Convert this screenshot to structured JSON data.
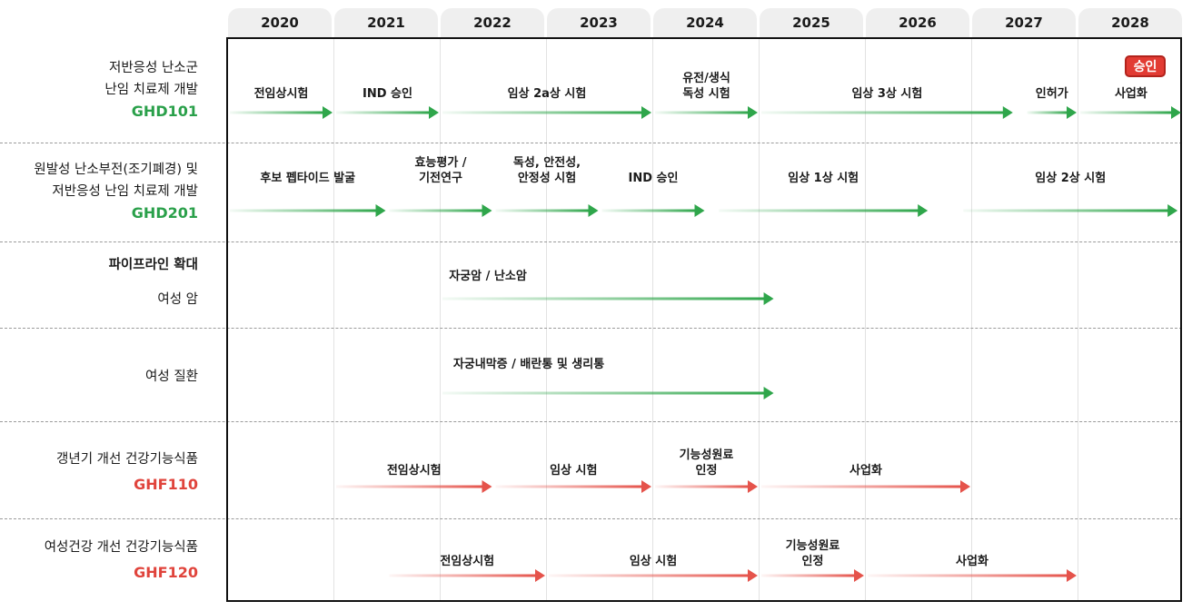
{
  "years": [
    "2020",
    "2021",
    "2022",
    "2023",
    "2024",
    "2025",
    "2026",
    "2027",
    "2028"
  ],
  "rows": [
    {
      "lines": [
        "저반응성 난소군",
        "난임 치료제 개발"
      ],
      "code": "GHD101",
      "color": "green"
    },
    {
      "lines": [
        "원발성 난소부전(조기폐경) 및",
        "저반응성 난임 치료제 개발"
      ],
      "code": "GHD201",
      "color": "green"
    },
    {
      "heading": "파이프라인 확대",
      "lines": [
        "여성 암"
      ]
    },
    {
      "lines": [
        "여성 질환"
      ]
    },
    {
      "lines": [
        "갱년기 개선 건강기능식품"
      ],
      "code": "GHF110",
      "color": "red"
    },
    {
      "lines": [
        "여성건강 개선 건강기능식품"
      ],
      "code": "GHF120",
      "color": "red"
    }
  ],
  "segments": [
    {
      "label": "전임상시험",
      "start": 2020.0,
      "end": 2021.0,
      "row": 0,
      "color": "green"
    },
    {
      "label": "IND 승인",
      "start": 2021.0,
      "end": 2022.0,
      "row": 0,
      "color": "green"
    },
    {
      "label": "임상 2a상 시험",
      "start": 2022.0,
      "end": 2024.0,
      "row": 0,
      "color": "green"
    },
    {
      "label": "유전/생식\n독성 시험",
      "start": 2024.0,
      "end": 2025.0,
      "row": 0,
      "color": "green"
    },
    {
      "label": "임상 3상 시험",
      "start": 2025.0,
      "end": 2027.4,
      "row": 0,
      "color": "green"
    },
    {
      "label": "인허가",
      "start": 2027.5,
      "end": 2028.0,
      "row": 0,
      "color": "green"
    },
    {
      "label": "사업화",
      "start": 2028.0,
      "end": 2028.99,
      "row": 0,
      "color": "green"
    },
    {
      "label": "후보 펩타이드 발굴",
      "start": 2020.0,
      "end": 2021.5,
      "row": 1,
      "color": "green"
    },
    {
      "label": "효능평가 /\n기전연구",
      "start": 2021.5,
      "end": 2022.5,
      "row": 1,
      "color": "green"
    },
    {
      "label": "독성, 안전성,\n안정성 시험",
      "start": 2022.5,
      "end": 2023.5,
      "row": 1,
      "color": "green"
    },
    {
      "label": "IND 승인",
      "start": 2023.5,
      "end": 2024.5,
      "row": 1,
      "color": "green"
    },
    {
      "label": "임상 1상 시험",
      "start": 2024.6,
      "end": 2026.6,
      "row": 1,
      "color": "green"
    },
    {
      "label": "임상 2상 시험",
      "start": 2026.9,
      "end": 2028.95,
      "row": 1,
      "color": "green"
    },
    {
      "label": "자궁암 / 난소암",
      "start": 2022.0,
      "end": 2025.15,
      "row": 2,
      "color": "green"
    },
    {
      "label": "자궁내막증 / 배란통 및 생리통",
      "start": 2022.0,
      "end": 2025.15,
      "row": 3,
      "color": "green"
    },
    {
      "label": "전임상시험",
      "start": 2021.0,
      "end": 2022.5,
      "row": 4,
      "color": "red"
    },
    {
      "label": "임상 시험",
      "start": 2022.5,
      "end": 2024.0,
      "row": 4,
      "color": "red"
    },
    {
      "label": "기능성원료\n인정",
      "start": 2024.0,
      "end": 2025.0,
      "row": 4,
      "color": "red"
    },
    {
      "label": "사업화",
      "start": 2025.0,
      "end": 2027.0,
      "row": 4,
      "color": "red"
    },
    {
      "label": "전임상시험",
      "start": 2021.5,
      "end": 2023.0,
      "row": 5,
      "color": "red"
    },
    {
      "label": "임상 시험",
      "start": 2023.0,
      "end": 2025.0,
      "row": 5,
      "color": "red"
    },
    {
      "label": "기능성원료\n인정",
      "start": 2025.0,
      "end": 2026.0,
      "row": 5,
      "color": "red"
    },
    {
      "label": "사업화",
      "start": 2026.0,
      "end": 2028.0,
      "row": 5,
      "color": "red"
    }
  ],
  "badge": {
    "label": "승인"
  },
  "colors": {
    "green": "#2fa64b",
    "red": "#e5534b",
    "badge": "#e23b33"
  }
}
